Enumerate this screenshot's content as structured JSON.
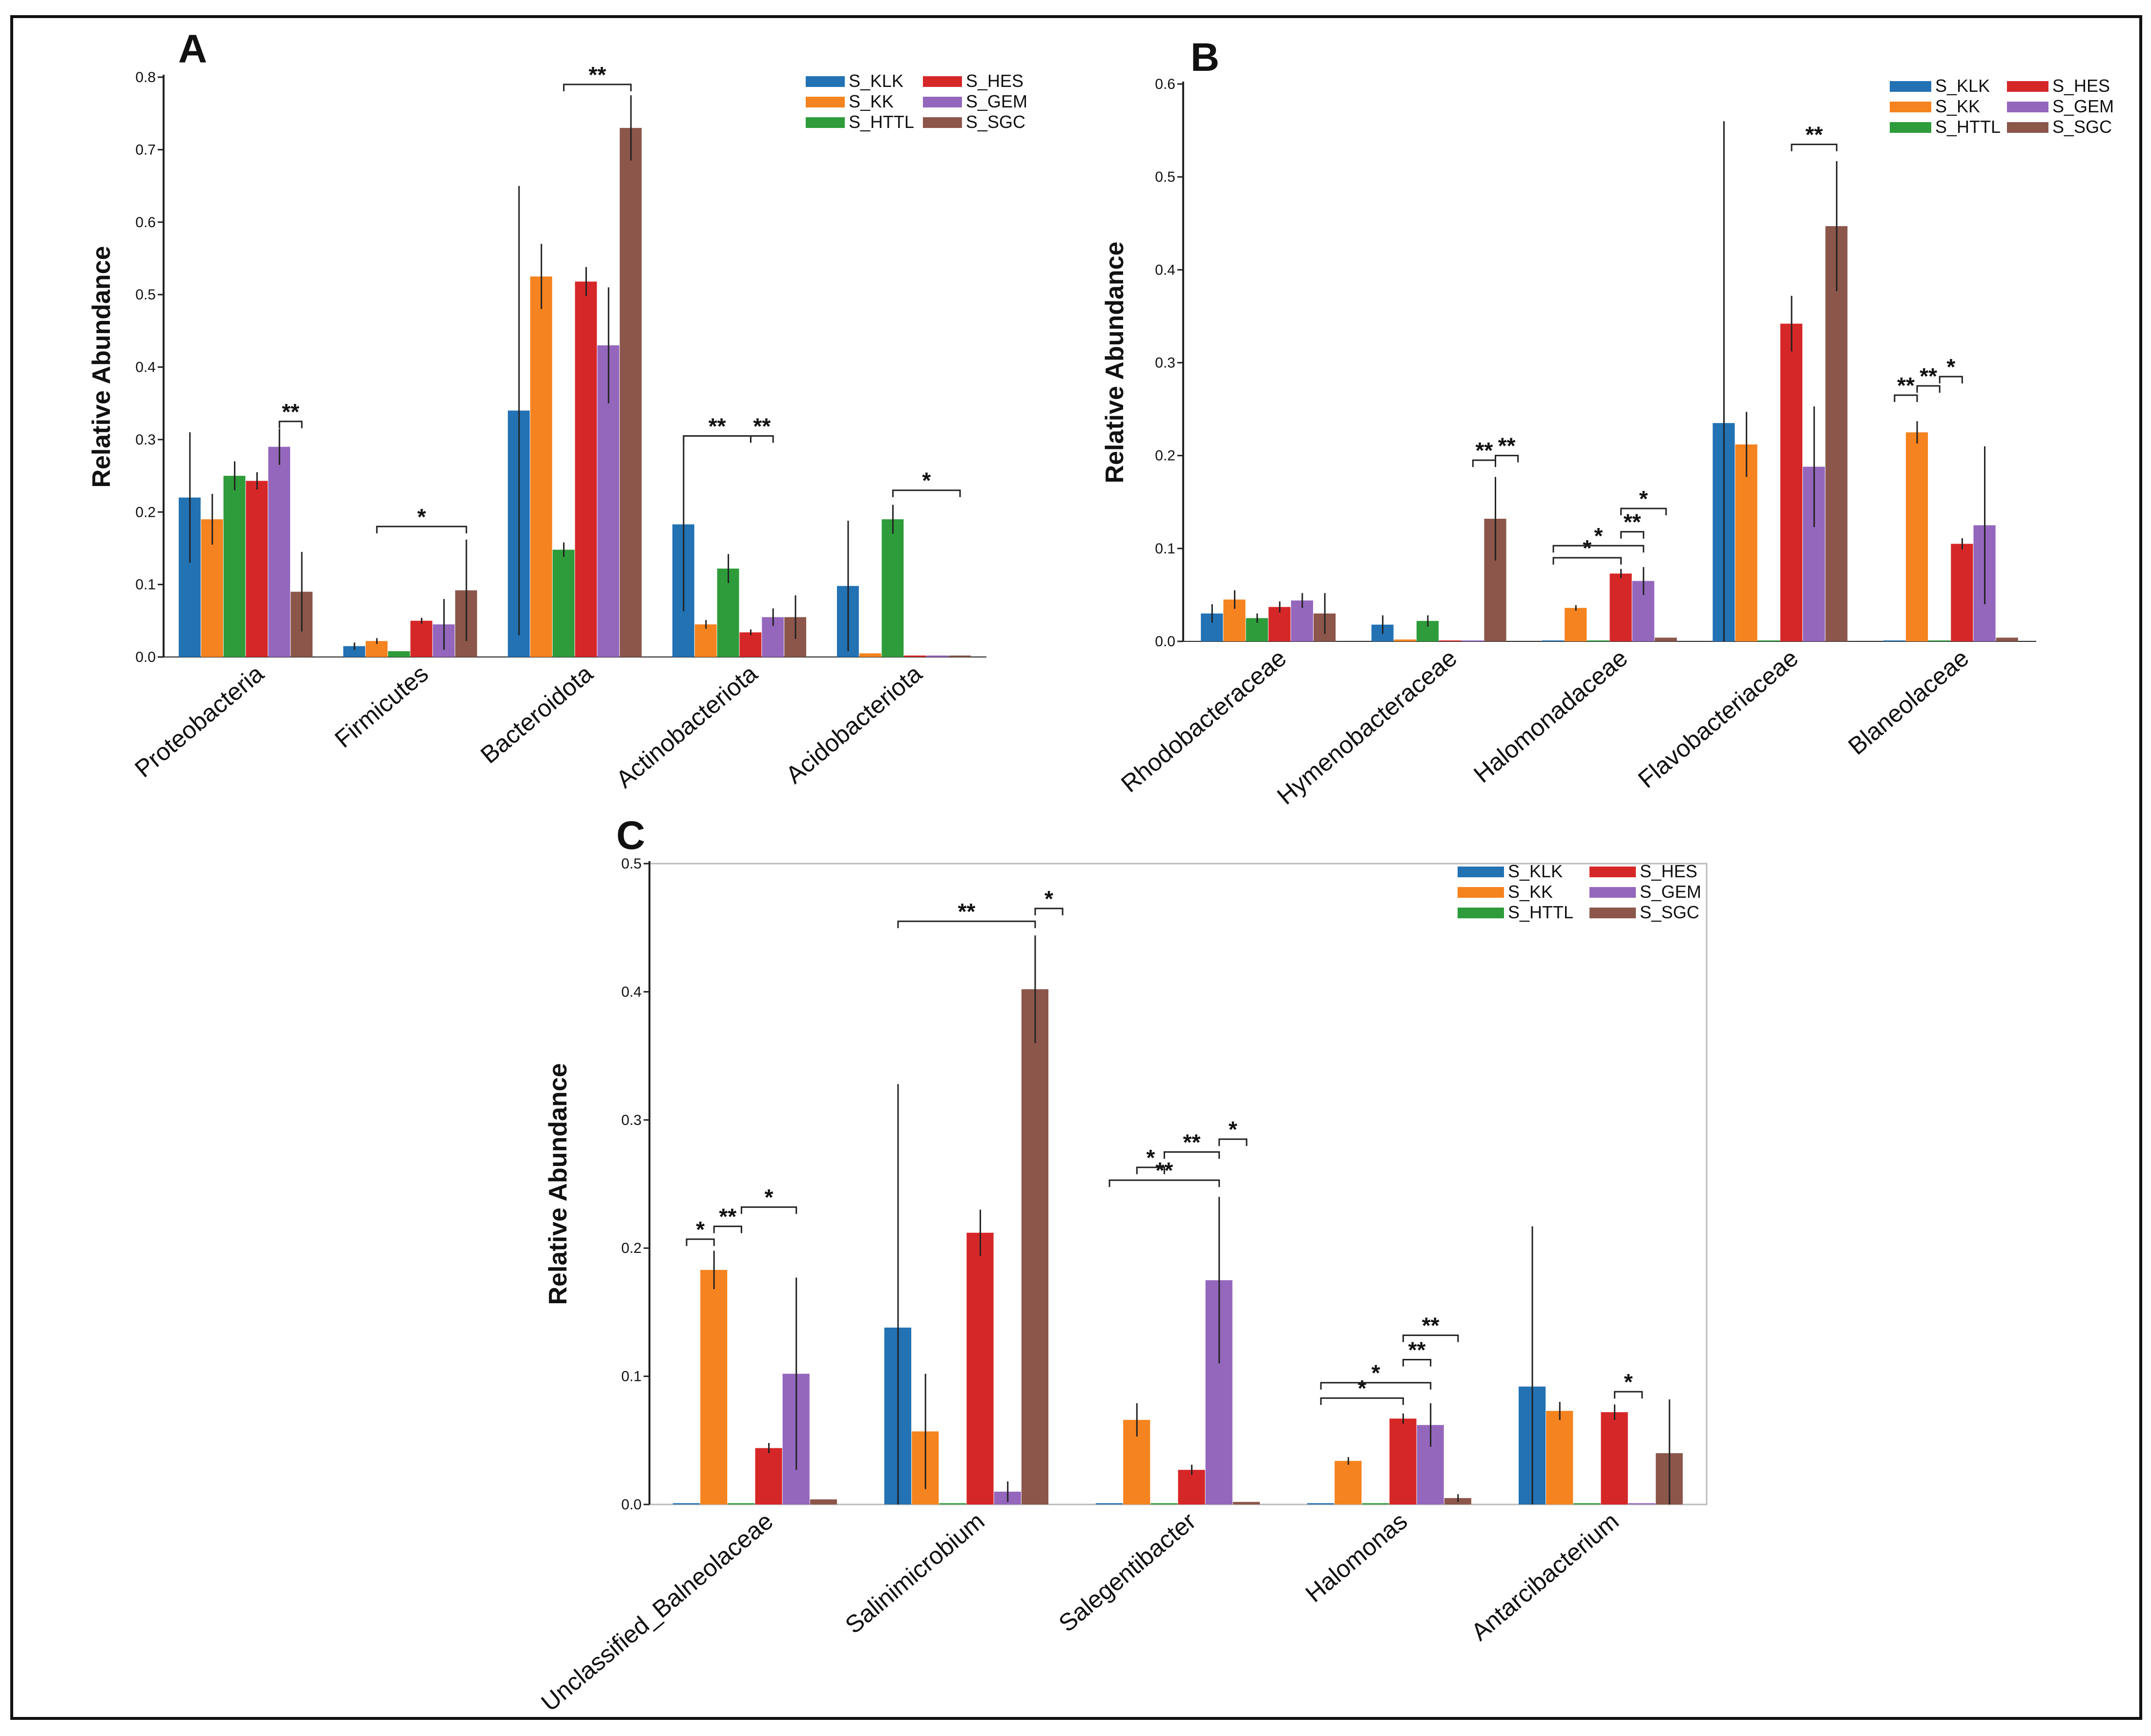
{
  "colors": {
    "S_KLK": "#2272b4",
    "S_KK": "#f5831f",
    "S_HTTL": "#2e9c3a",
    "S_HES": "#d62728",
    "S_GEM": "#9467bd",
    "S_SGC": "#8c564b"
  },
  "chart_data": [
    {
      "panel": "A",
      "type": "bar",
      "ylabel": "Relative Abundance",
      "ylim": [
        0,
        0.8
      ],
      "yticks": [
        "0.0",
        "0.1",
        "0.2",
        "0.3",
        "0.4",
        "0.5",
        "0.6",
        "0.7",
        "0.8"
      ],
      "categories": [
        "Proteobacteria",
        "Firmicutes",
        "Bacteroidota",
        "Actinobacteriota",
        "Acidobacteriota"
      ],
      "legend": [
        "S_KLK",
        "S_KK",
        "S_HTTL",
        "S_HES",
        "S_GEM",
        "S_SGC"
      ],
      "series": [
        {
          "name": "S_KLK",
          "values": [
            0.22,
            0.015,
            0.34,
            0.183,
            0.098
          ],
          "errors": [
            0.09,
            0.005,
            0.31,
            0.12,
            0.09
          ]
        },
        {
          "name": "S_KK",
          "values": [
            0.19,
            0.022,
            0.525,
            0.045,
            0.005
          ],
          "errors": [
            0.035,
            0.004,
            0.045,
            0.006,
            0.001
          ]
        },
        {
          "name": "S_HTTL",
          "values": [
            0.25,
            0.008,
            0.148,
            0.122,
            0.19
          ],
          "errors": [
            0.02,
            0.002,
            0.01,
            0.02,
            0.02
          ]
        },
        {
          "name": "S_HES",
          "values": [
            0.243,
            0.05,
            0.518,
            0.034,
            0.002
          ],
          "errors": [
            0.012,
            0.004,
            0.02,
            0.004,
            0.001
          ]
        },
        {
          "name": "S_GEM",
          "values": [
            0.29,
            0.045,
            0.43,
            0.055,
            0.002
          ],
          "errors": [
            0.025,
            0.035,
            0.08,
            0.012,
            0.001
          ]
        },
        {
          "name": "S_SGC",
          "values": [
            0.09,
            0.092,
            0.73,
            0.055,
            0.002
          ],
          "errors": [
            0.055,
            0.07,
            0.045,
            0.03,
            0.001
          ]
        }
      ],
      "significance": [
        {
          "cat": 0,
          "from": 4,
          "to": 5,
          "y": 0.325,
          "label": "**"
        },
        {
          "cat": 1,
          "from": 1,
          "to": 5,
          "y": 0.18,
          "label": "*"
        },
        {
          "cat": 2,
          "from": 2,
          "to": 5,
          "y": 0.79,
          "label": "**"
        },
        {
          "cat": 3,
          "from": 0,
          "to": 3,
          "y": 0.305,
          "label": "**"
        },
        {
          "cat": 3,
          "from": 3,
          "to": 4,
          "y": 0.305,
          "label": "**"
        },
        {
          "cat": 4,
          "from": 2,
          "to": 5,
          "y": 0.23,
          "label": "*"
        }
      ]
    },
    {
      "panel": "B",
      "type": "bar",
      "ylabel": "Relative Abundance",
      "ylim": [
        0,
        0.6
      ],
      "yticks": [
        "0.0",
        "0.1",
        "0.2",
        "0.3",
        "0.4",
        "0.5",
        "0.6"
      ],
      "categories": [
        "Rhodobacteraceae",
        "Hymenobacteraceae",
        "Halomonadaceae",
        "Flavobacteriaceae",
        "Blaneolaceae"
      ],
      "legend": [
        "S_KLK",
        "S_KK",
        "S_HTTL",
        "S_HES",
        "S_GEM",
        "S_SGC"
      ],
      "series": [
        {
          "name": "S_KLK",
          "values": [
            0.03,
            0.018,
            0.001,
            0.235,
            0.001
          ],
          "errors": [
            0.01,
            0.01,
            0.001,
            0.325,
            0.001
          ]
        },
        {
          "name": "S_KK",
          "values": [
            0.045,
            0.002,
            0.036,
            0.212,
            0.225
          ],
          "errors": [
            0.01,
            0.001,
            0.003,
            0.035,
            0.012
          ]
        },
        {
          "name": "S_HTTL",
          "values": [
            0.025,
            0.022,
            0.001,
            0.001,
            0.001
          ],
          "errors": [
            0.005,
            0.006,
            0.001,
            0.001,
            0.001
          ]
        },
        {
          "name": "S_HES",
          "values": [
            0.037,
            0.001,
            0.073,
            0.342,
            0.105
          ],
          "errors": [
            0.006,
            0.001,
            0.005,
            0.03,
            0.006
          ]
        },
        {
          "name": "S_GEM",
          "values": [
            0.044,
            0.001,
            0.065,
            0.188,
            0.125
          ],
          "errors": [
            0.008,
            0.001,
            0.015,
            0.065,
            0.085
          ]
        },
        {
          "name": "S_SGC",
          "values": [
            0.03,
            0.132,
            0.004,
            0.447,
            0.004
          ],
          "errors": [
            0.022,
            0.045,
            0.002,
            0.07,
            0.002
          ]
        }
      ],
      "significance": [
        {
          "cat": 1,
          "from": 4,
          "to": 5,
          "y": 0.195,
          "label": "**"
        },
        {
          "cat": 1,
          "from": 5,
          "to": 6,
          "y": 0.2,
          "label": "**"
        },
        {
          "cat": 2,
          "from": 0,
          "to": 3,
          "y": 0.09,
          "label": "*"
        },
        {
          "cat": 2,
          "from": 0,
          "to": 4,
          "y": 0.103,
          "label": "*"
        },
        {
          "cat": 2,
          "from": 3,
          "to": 4,
          "y": 0.118,
          "label": "**"
        },
        {
          "cat": 2,
          "from": 3,
          "to": 5,
          "y": 0.143,
          "label": "*"
        },
        {
          "cat": 3,
          "from": 3,
          "to": 5,
          "y": 0.535,
          "label": "**"
        },
        {
          "cat": 4,
          "from": 0,
          "to": 1,
          "y": 0.265,
          "label": "**"
        },
        {
          "cat": 4,
          "from": 1,
          "to": 2,
          "y": 0.275,
          "label": "**"
        },
        {
          "cat": 4,
          "from": 2,
          "to": 3,
          "y": 0.285,
          "label": "*"
        }
      ]
    },
    {
      "panel": "C",
      "type": "bar",
      "ylabel": "Relative Abundance",
      "ylim": [
        0,
        0.5
      ],
      "yticks": [
        "0.0",
        "0.1",
        "0.2",
        "0.3",
        "0.4",
        "0.5"
      ],
      "categories": [
        "Unclassified_Balneolaceae",
        "Salinimicrobium",
        "Salegentibacter",
        "Halomonas",
        "Antarcibacterium"
      ],
      "legend": [
        "S_KLK",
        "S_KK",
        "S_HTTL",
        "S_HES",
        "S_GEM",
        "S_SGC"
      ],
      "series": [
        {
          "name": "S_KLK",
          "values": [
            0.001,
            0.138,
            0.001,
            0.001,
            0.092
          ],
          "errors": [
            0.001,
            0.19,
            0.001,
            0.001,
            0.125
          ]
        },
        {
          "name": "S_KK",
          "values": [
            0.183,
            0.057,
            0.066,
            0.034,
            0.073
          ],
          "errors": [
            0.015,
            0.045,
            0.013,
            0.003,
            0.007
          ]
        },
        {
          "name": "S_HTTL",
          "values": [
            0.001,
            0.001,
            0.001,
            0.001,
            0.001
          ],
          "errors": [
            0.001,
            0.001,
            0.001,
            0.001,
            0.001
          ]
        },
        {
          "name": "S_HES",
          "values": [
            0.044,
            0.212,
            0.027,
            0.067,
            0.072
          ],
          "errors": [
            0.004,
            0.018,
            0.004,
            0.004,
            0.006
          ]
        },
        {
          "name": "S_GEM",
          "values": [
            0.102,
            0.01,
            0.175,
            0.062,
            0.001
          ],
          "errors": [
            0.075,
            0.008,
            0.065,
            0.017,
            0.001
          ]
        },
        {
          "name": "S_SGC",
          "values": [
            0.004,
            0.402,
            0.002,
            0.005,
            0.04
          ],
          "errors": [
            0.002,
            0.042,
            0.001,
            0.003,
            0.042
          ]
        }
      ],
      "significance": [
        {
          "cat": 0,
          "from": 0,
          "to": 1,
          "y": 0.207,
          "label": "*"
        },
        {
          "cat": 0,
          "from": 1,
          "to": 2,
          "y": 0.217,
          "label": "**"
        },
        {
          "cat": 0,
          "from": 2,
          "to": 4,
          "y": 0.232,
          "label": "*"
        },
        {
          "cat": 1,
          "from": 0,
          "to": 5,
          "y": 0.455,
          "label": "**"
        },
        {
          "cat": 1,
          "from": 5,
          "to": 6,
          "y": 0.465,
          "label": "*"
        },
        {
          "cat": 2,
          "from": 0,
          "to": 4,
          "y": 0.253,
          "label": "**"
        },
        {
          "cat": 2,
          "from": 1,
          "to": 2,
          "y": 0.263,
          "label": "*"
        },
        {
          "cat": 2,
          "from": 2,
          "to": 4,
          "y": 0.275,
          "label": "**"
        },
        {
          "cat": 2,
          "from": 4,
          "to": 5,
          "y": 0.285,
          "label": "*"
        },
        {
          "cat": 3,
          "from": 0,
          "to": 3,
          "y": 0.083,
          "label": "*"
        },
        {
          "cat": 3,
          "from": 0,
          "to": 4,
          "y": 0.095,
          "label": "*"
        },
        {
          "cat": 3,
          "from": 3,
          "to": 4,
          "y": 0.113,
          "label": "**"
        },
        {
          "cat": 3,
          "from": 3,
          "to": 5,
          "y": 0.132,
          "label": "**"
        },
        {
          "cat": 4,
          "from": 3,
          "to": 4,
          "y": 0.088,
          "label": "*"
        }
      ]
    }
  ]
}
